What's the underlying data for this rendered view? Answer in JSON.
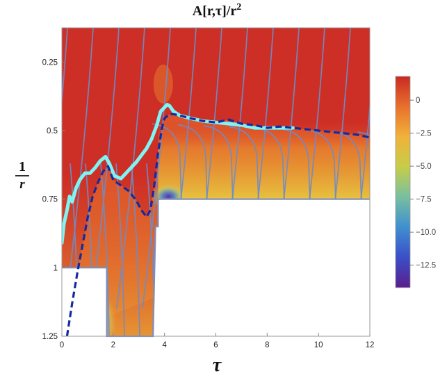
{
  "chart_data": {
    "type": "heatmap",
    "title": {
      "base": "A[r,τ]/r",
      "exp": "2"
    },
    "xlabel": "τ",
    "ylabel": {
      "numerator": "1",
      "denominator": "r"
    },
    "xlim": [
      0,
      12
    ],
    "ylim": [
      1.25,
      0.125
    ],
    "y_axis_inverted": true,
    "x_ticks": [
      0,
      2,
      4,
      6,
      8,
      10,
      12
    ],
    "x_tick_labels": [
      "0",
      "2",
      "4",
      "6",
      "8",
      "10",
      "12"
    ],
    "y_ticks": [
      0.25,
      0.5,
      0.75,
      1,
      1.25
    ],
    "y_tick_labels": [
      "0.25",
      "0.5",
      "0.75",
      "1",
      "1.25"
    ],
    "colorbar": {
      "range": [
        -14.2,
        1.8
      ],
      "ticks": [
        0,
        -2.5,
        -5.0,
        -7.5,
        -10.0,
        -12.5
      ],
      "tick_labels": [
        "0",
        "−2.5",
        "−5.0",
        "−7.5",
        "−10.0",
        "−12.5"
      ],
      "colors": [
        "#5a1e8c",
        "#3a4fc8",
        "#3f8fd0",
        "#78bfa0",
        "#c6cd49",
        "#f0b23a",
        "#e8702d",
        "#c92a22"
      ]
    },
    "domain_boundary": {
      "tau": [
        0,
        1.75,
        1.75,
        3.55,
        3.65,
        3.75,
        3.75,
        12
      ],
      "inv_r": [
        1,
        1,
        1.25,
        1.25,
        0.85,
        0.85,
        0.75,
        0.75
      ]
    },
    "series": [
      {
        "style": "thick-cyan",
        "tau": [
          0,
          0.08,
          0.2,
          0.3,
          0.4,
          0.55,
          0.7,
          0.9,
          1.1,
          1.3,
          1.5,
          1.7,
          1.85,
          2.05,
          2.3,
          2.6,
          2.9,
          3.1,
          3.3,
          3.5,
          3.7,
          3.85,
          4.0,
          4.1,
          4.2,
          4.35,
          4.6,
          5.0,
          5.5,
          6.0,
          6.5,
          7.0,
          7.5,
          8.0,
          8.5,
          9.0
        ],
        "inv_r": [
          0.91,
          0.84,
          0.79,
          0.74,
          0.76,
          0.71,
          0.68,
          0.655,
          0.655,
          0.635,
          0.61,
          0.595,
          0.62,
          0.665,
          0.675,
          0.645,
          0.615,
          0.59,
          0.565,
          0.53,
          0.48,
          0.43,
          0.415,
          0.405,
          0.41,
          0.43,
          0.445,
          0.455,
          0.465,
          0.47,
          0.475,
          0.48,
          0.49,
          0.49,
          0.49,
          0.49
        ]
      },
      {
        "style": "dashed-navy",
        "tau": [
          0.2,
          0.4,
          0.6,
          0.8,
          1.0,
          1.2,
          1.4,
          1.6,
          1.8,
          2.0,
          2.3,
          2.6,
          2.9,
          3.1,
          3.3,
          3.45,
          3.6,
          3.75,
          3.9,
          4.0,
          4.2,
          4.35,
          4.6,
          5.0,
          5.5,
          6.0,
          6.5,
          7.0,
          7.5,
          8.0,
          8.5,
          9.0,
          9.5,
          10.0,
          10.5,
          11.0,
          11.5,
          12.0
        ],
        "inv_r": [
          1.25,
          1.13,
          1.02,
          0.92,
          0.82,
          0.74,
          0.69,
          0.65,
          0.63,
          0.68,
          0.7,
          0.72,
          0.755,
          0.79,
          0.815,
          0.79,
          0.7,
          0.58,
          0.49,
          0.455,
          0.44,
          0.44,
          0.445,
          0.455,
          0.465,
          0.47,
          0.46,
          0.475,
          0.48,
          0.49,
          0.485,
          0.49,
          0.495,
          0.5,
          0.505,
          0.51,
          0.515,
          0.525
        ]
      }
    ]
  }
}
